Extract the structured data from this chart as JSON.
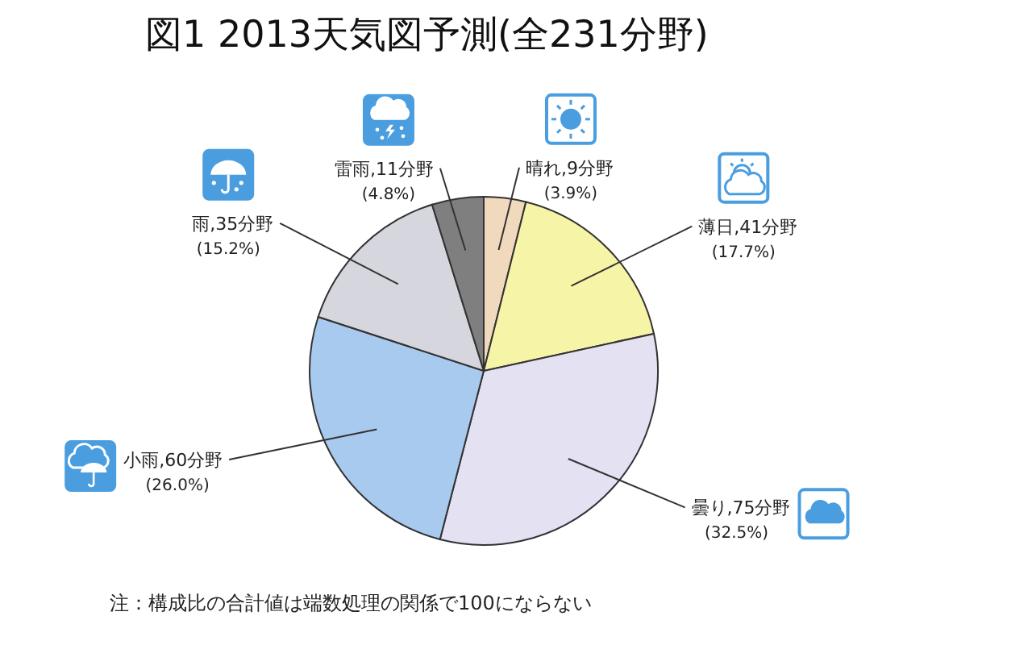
{
  "chart_data": {
    "type": "pie",
    "title": "図1 2013天気図予測(全231分野)",
    "categories": [
      "晴れ,9分野",
      "薄日,41分野",
      "曇り,75分野",
      "小雨,60分野",
      "雨,35分野",
      "雷雨,11分野"
    ],
    "values": [
      3.9,
      17.7,
      32.5,
      26.0,
      15.2,
      4.8
    ],
    "value_labels": [
      "(3.9%)",
      "(17.7%)",
      "(32.5%)",
      "(26.0%)",
      "(15.2%)",
      "(4.8%)"
    ],
    "colors": [
      "#f0d9bc",
      "#f6f4a6",
      "#e4e1f3",
      "#a9caef",
      "#d6d6de",
      "#7f7f7f"
    ],
    "annotations": [
      "注：構成比の合計値は端数処理の関係で100にならない"
    ]
  }
}
